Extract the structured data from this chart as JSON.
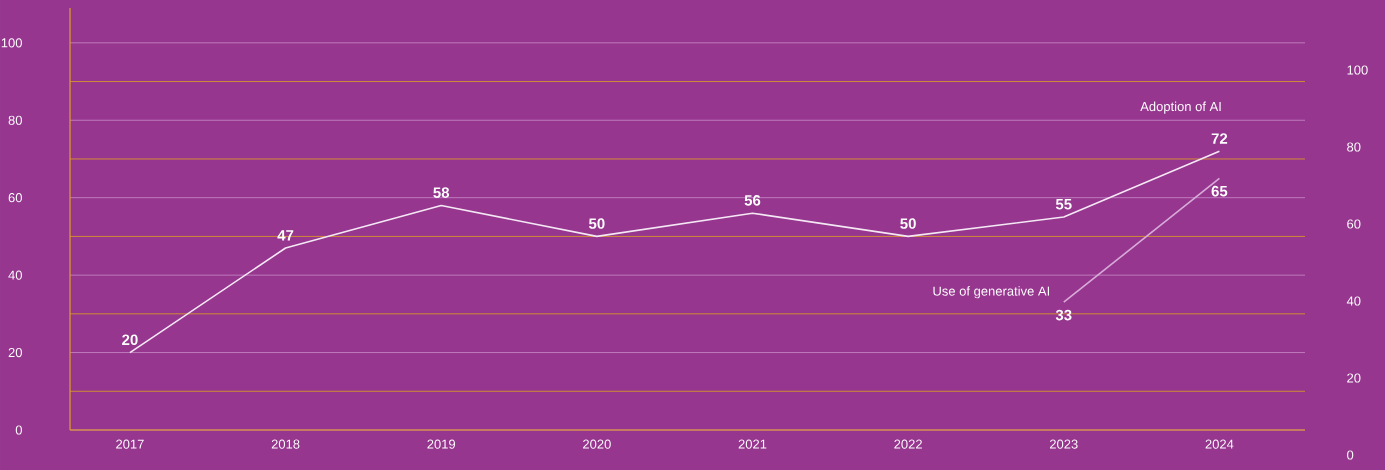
{
  "chart_data": {
    "type": "line",
    "categories": [
      "2017",
      "2018",
      "2019",
      "2020",
      "2021",
      "2022",
      "2023",
      "2024"
    ],
    "series": [
      {
        "name": "Adoption of AI",
        "color": "#f4e8f4",
        "values": [
          20,
          47,
          58,
          50,
          56,
          50,
          55,
          72
        ]
      },
      {
        "name": "Use of generative AI",
        "color": "#d9abd9",
        "values": [
          null,
          null,
          null,
          null,
          null,
          null,
          33,
          65
        ]
      }
    ],
    "ylim": [
      0,
      109
    ],
    "yticks": [
      0,
      20,
      40,
      60,
      80,
      100
    ],
    "y2lim": [
      0,
      100
    ],
    "y2ticks": [
      0,
      20,
      40,
      60,
      80,
      100
    ],
    "grid": "y",
    "legend": false,
    "marker": "none",
    "line_style": "solid",
    "data_labels": true
  }
}
